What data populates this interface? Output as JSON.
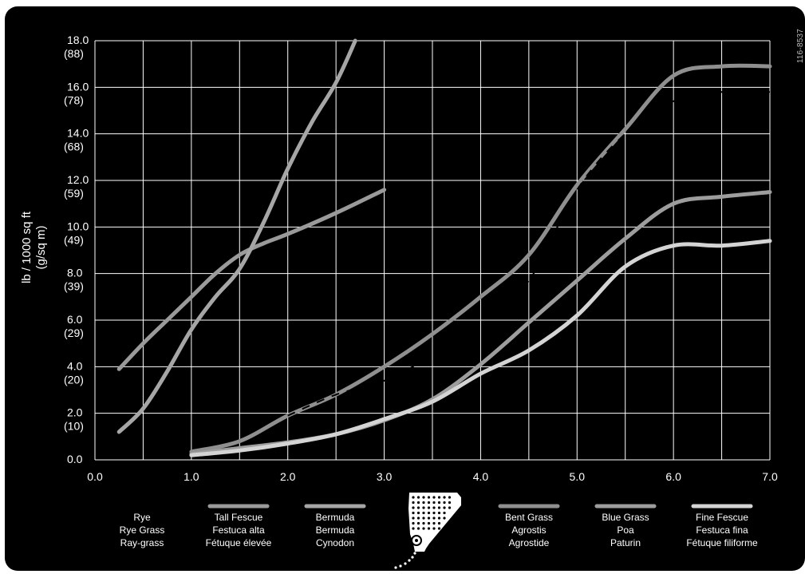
{
  "chart_data": {
    "type": "line",
    "xlabel": "",
    "ylabel": [
      "lb / 1000 sq ft",
      "(g/sq m)"
    ],
    "xlim": [
      0,
      7
    ],
    "ylim": [
      0,
      18
    ],
    "grid": true,
    "x_ticks": [
      "0.0",
      "1.0",
      "2.0",
      "3.0",
      "4.0",
      "5.0",
      "6.0",
      "7.0"
    ],
    "y_ticks": [
      {
        "v": 0,
        "label": "0.0",
        "alt": ""
      },
      {
        "v": 2,
        "label": "2.0",
        "alt": "(10)"
      },
      {
        "v": 4,
        "label": "4.0",
        "alt": "(20)"
      },
      {
        "v": 6,
        "label": "6.0",
        "alt": "(29)"
      },
      {
        "v": 8,
        "label": "8.0",
        "alt": "(39)"
      },
      {
        "v": 10,
        "label": "10.0",
        "alt": "(49)"
      },
      {
        "v": 12,
        "label": "12.0",
        "alt": "(59)"
      },
      {
        "v": 14,
        "label": "14.0",
        "alt": "(68)"
      },
      {
        "v": 16,
        "label": "16.0",
        "alt": "(78)"
      },
      {
        "v": 18,
        "label": "18.0",
        "alt": "(88)"
      }
    ],
    "series": [
      {
        "name": "Rye",
        "labels": [
          "Rye",
          "Rye Grass",
          "Ray-grass"
        ],
        "color": "#000000",
        "dash": "8 14",
        "points": [
          [
            0.25,
            1.2
          ],
          [
            0.5,
            2.2
          ],
          [
            0.75,
            3.8
          ],
          [
            1.0,
            5.6
          ],
          [
            1.25,
            7.0
          ],
          [
            1.5,
            8.2
          ],
          [
            1.75,
            10.2
          ],
          [
            2.0,
            12.5
          ],
          [
            2.25,
            14.5
          ],
          [
            2.5,
            16.2
          ],
          [
            2.7,
            18.0
          ]
        ]
      },
      {
        "name": "Tall Fescue",
        "labels": [
          "Tall Fescue",
          "Festuca alta",
          "Fétuque élevée"
        ],
        "color": "#9a9a9a",
        "points": [
          [
            0.25,
            3.9
          ],
          [
            0.5,
            5.0
          ],
          [
            0.75,
            6.0
          ],
          [
            1.0,
            7.0
          ],
          [
            1.25,
            8.0
          ],
          [
            1.5,
            8.8
          ],
          [
            1.75,
            9.3
          ],
          [
            2.0,
            9.7
          ],
          [
            2.5,
            10.6
          ],
          [
            3.0,
            11.6
          ]
        ]
      },
      {
        "name": "Bermuda",
        "labels": [
          "Bermuda",
          "Bermuda",
          "Cynodon"
        ],
        "color": "#a6a6a6",
        "points": [
          [
            0.25,
            1.2
          ],
          [
            0.5,
            2.2
          ],
          [
            0.75,
            3.8
          ],
          [
            1.0,
            5.6
          ],
          [
            1.25,
            7.0
          ],
          [
            1.5,
            8.2
          ],
          [
            1.75,
            10.2
          ],
          [
            2.0,
            12.5
          ],
          [
            2.25,
            14.5
          ],
          [
            2.5,
            16.2
          ],
          [
            2.7,
            18.0
          ]
        ]
      },
      {
        "name": "Bent Grass",
        "labels": [
          "Bent Grass",
          "Agrostis",
          "Agrostide"
        ],
        "color": "#8f8f8f",
        "points": [
          [
            1.0,
            0.35
          ],
          [
            1.5,
            0.8
          ],
          [
            2.0,
            1.9
          ],
          [
            2.5,
            2.8
          ],
          [
            3.0,
            4.0
          ],
          [
            3.5,
            5.4
          ],
          [
            4.0,
            7.0
          ],
          [
            4.5,
            8.8
          ],
          [
            5.0,
            11.8
          ],
          [
            5.5,
            14.2
          ],
          [
            6.0,
            16.5
          ],
          [
            6.5,
            16.9
          ],
          [
            7.0,
            16.9
          ]
        ]
      },
      {
        "name": "Blue Grass",
        "labels": [
          "Blue Grass",
          "Poa",
          "Paturin"
        ],
        "color": "#9d9d9d",
        "points": [
          [
            1.0,
            0.25
          ],
          [
            1.5,
            0.5
          ],
          [
            2.0,
            0.75
          ],
          [
            2.5,
            1.1
          ],
          [
            3.0,
            1.7
          ],
          [
            3.5,
            2.6
          ],
          [
            4.0,
            4.1
          ],
          [
            4.5,
            5.9
          ],
          [
            5.0,
            7.7
          ],
          [
            5.5,
            9.5
          ],
          [
            6.0,
            11.0
          ],
          [
            6.5,
            11.3
          ],
          [
            7.0,
            11.5
          ]
        ]
      },
      {
        "name": "Fine Fescue",
        "labels": [
          "Fine Fescue",
          "Festuca fina",
          "Fétuque filiforme"
        ],
        "color": "#d4d4d4",
        "points": [
          [
            1.0,
            0.2
          ],
          [
            1.5,
            0.4
          ],
          [
            2.0,
            0.7
          ],
          [
            2.5,
            1.1
          ],
          [
            3.0,
            1.75
          ],
          [
            3.5,
            2.5
          ],
          [
            4.0,
            3.7
          ],
          [
            4.5,
            4.7
          ],
          [
            5.0,
            6.2
          ],
          [
            5.5,
            8.3
          ],
          [
            6.0,
            9.2
          ],
          [
            6.5,
            9.2
          ],
          [
            7.0,
            9.4
          ]
        ]
      }
    ],
    "dashed_series": [
      {
        "name": "",
        "color": "#000000",
        "points": [
          [
            2.0,
            1.9
          ],
          [
            2.5,
            2.8
          ],
          [
            3.0,
            3.4
          ],
          [
            3.5,
            4.5
          ],
          [
            4.0,
            6.0
          ],
          [
            4.5,
            7.7
          ],
          [
            5.0,
            11.6
          ],
          [
            5.5,
            14.0
          ],
          [
            6.0,
            15.4
          ],
          [
            6.5,
            15.8
          ],
          [
            7.0,
            15.8
          ]
        ]
      }
    ]
  },
  "figure_code": "116-8537"
}
